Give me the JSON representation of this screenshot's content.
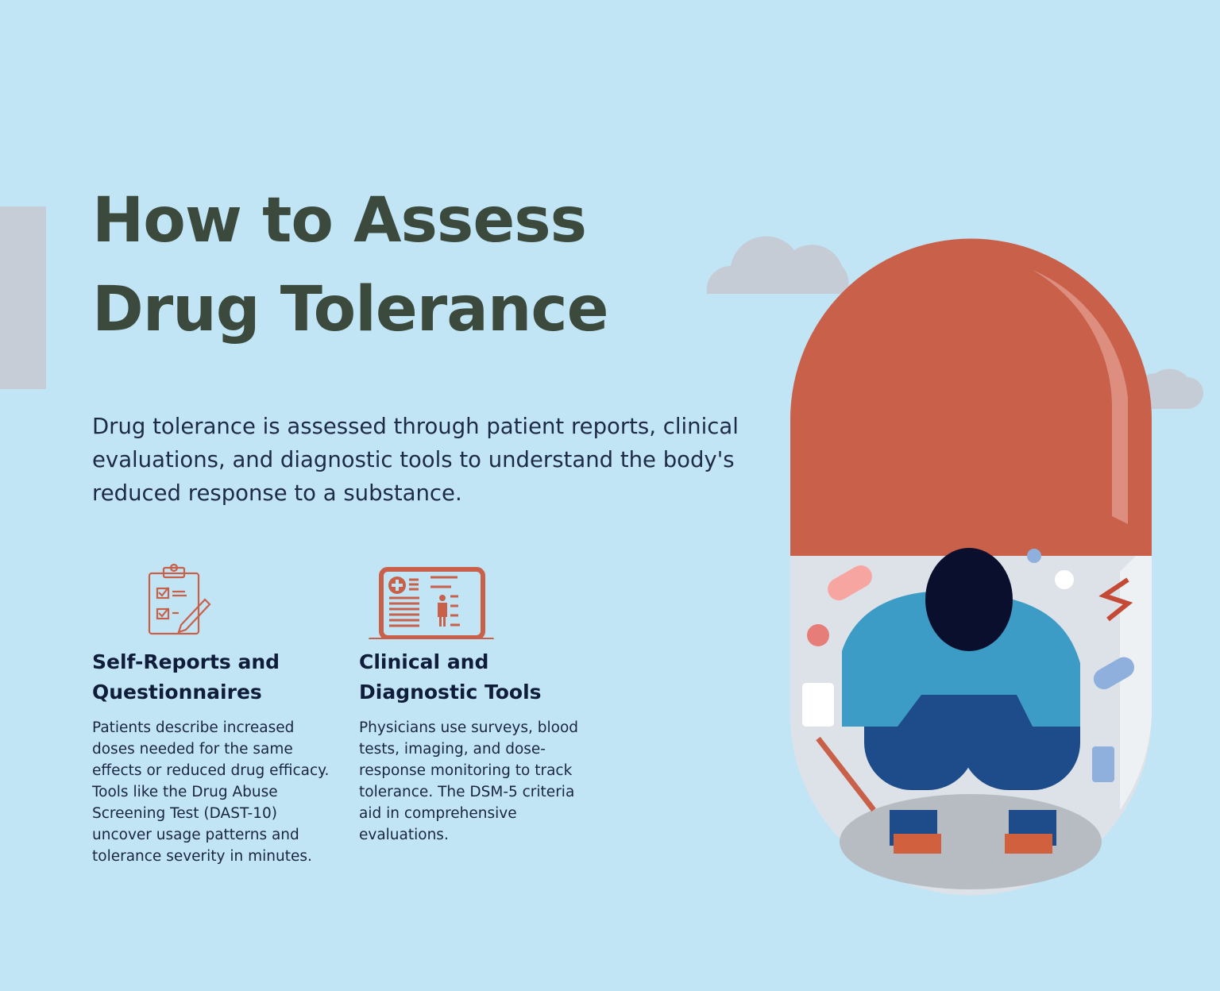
{
  "title": {
    "line1": "How to Assess",
    "line2": "Drug Tolerance"
  },
  "intro": "Drug tolerance is assessed through patient reports, clinical evaluations, and diagnostic tools to understand the body's reduced response to a substance.",
  "cards": [
    {
      "icon": "clipboard-checklist-icon",
      "heading_line1": "Self-Reports and",
      "heading_line2": "Questionnaires",
      "body": "Patients describe increased doses needed for the same effects or reduced drug efficacy. Tools like the Drug Abuse Screening Test (DAST-10) uncover usage patterns and tolerance severity in minutes."
    },
    {
      "icon": "laptop-medical-record-icon",
      "heading_line1": "Clinical and",
      "heading_line2": "Diagnostic Tools",
      "body": "Physicians use surveys, blood tests, imaging, and dose-response monitoring to track tolerance. The DSM-5 criteria aid in comprehensive evaluations."
    }
  ],
  "colors": {
    "background": "#c2e5f6",
    "accent": "#c8604a",
    "title": "#3c4a3e",
    "text": "#1e2b47"
  }
}
